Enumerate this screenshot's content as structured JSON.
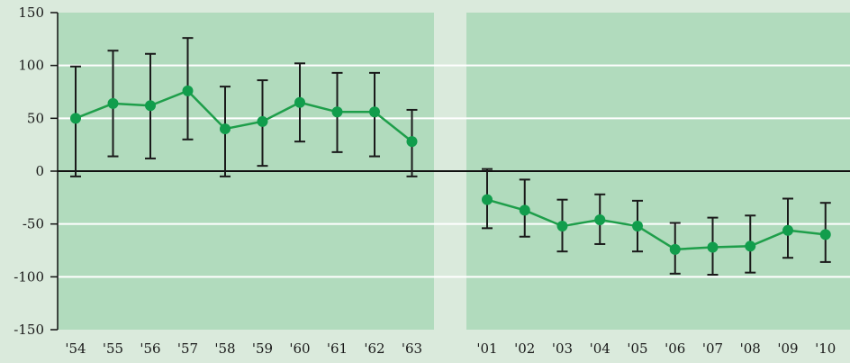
{
  "chart_data": {
    "type": "line",
    "title": "",
    "xlabel": "",
    "ylabel": "",
    "ylim": [
      -150,
      150
    ],
    "yticks": [
      "150",
      "100",
      "50",
      "0",
      "-50",
      "-100",
      "-150"
    ],
    "grid": "horizontal",
    "colors": {
      "background": "#daeadc",
      "panel": "#b1dbbd",
      "line": "#1e9e4a",
      "marker": "#119d4c",
      "errorbar": "#1a1a1a",
      "zero_line": "#111111",
      "gridline": "#ffffff"
    },
    "panels": [
      {
        "categories": [
          "'54",
          "'55",
          "'56",
          "'57",
          "'58",
          "'59",
          "'60",
          "'61",
          "'62",
          "'63"
        ],
        "values": [
          50,
          64,
          62,
          76,
          40,
          47,
          65,
          56,
          56,
          28
        ],
        "error_low": [
          -5,
          14,
          12,
          30,
          -5,
          5,
          28,
          18,
          14,
          -5
        ],
        "error_high": [
          99,
          114,
          111,
          126,
          80,
          86,
          102,
          93,
          93,
          58
        ]
      },
      {
        "categories": [
          "'01",
          "'02",
          "'03",
          "'04",
          "'05",
          "'06",
          "'07",
          "'08",
          "'09",
          "'10"
        ],
        "values": [
          -27,
          -37,
          -52,
          -46,
          -52,
          -74,
          -72,
          -71,
          -56,
          -60
        ],
        "error_low": [
          -54,
          -62,
          -76,
          -69,
          -76,
          -97,
          -98,
          -96,
          -82,
          -86
        ],
        "error_high": [
          2,
          -8,
          -27,
          -22,
          -28,
          -49,
          -44,
          -42,
          -26,
          -30
        ]
      }
    ]
  }
}
